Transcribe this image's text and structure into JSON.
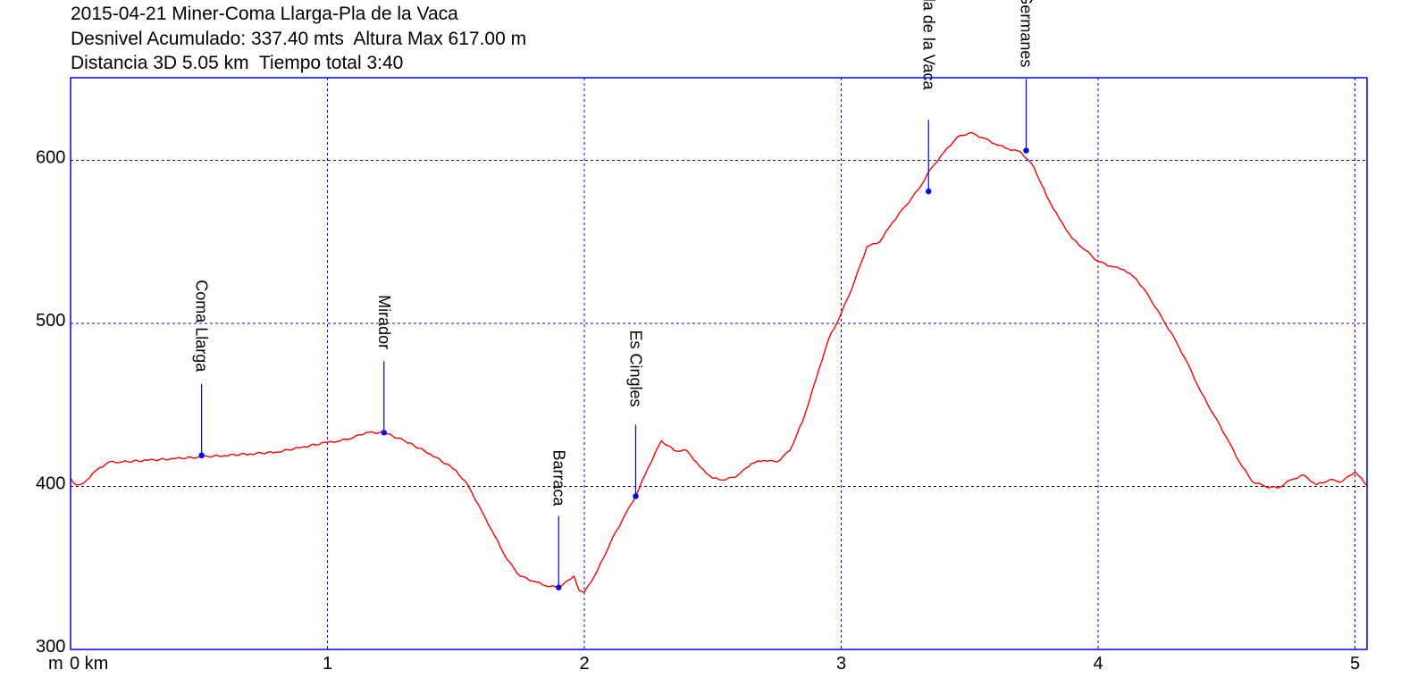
{
  "header": {
    "line1": "2015-04-21 Miner-Coma Llarga-Pla de la Vaca",
    "line2": "Desnivel Acumulado: 337.40 mts  Altura Max 617.00 m",
    "line3": "Distancia 3D 5.05 km  Tiempo total 3:40"
  },
  "chart_data": {
    "type": "line",
    "title": "2015-04-21 Miner-Coma Llarga-Pla de la Vaca",
    "xlabel": "km",
    "ylabel": "m",
    "xlim": [
      0,
      5.05
    ],
    "ylim": [
      300,
      650
    ],
    "x_ticks": [
      0,
      1,
      2,
      3,
      4,
      5
    ],
    "x_tick_labels": [
      "0 km",
      "1",
      "2",
      "3",
      "4",
      "5"
    ],
    "y_ticks": [
      300,
      400,
      500,
      600
    ],
    "y_tick_labels": [
      "300",
      "400",
      "500",
      "600"
    ],
    "grid": true,
    "colors": {
      "profile": "#ff0000",
      "grid": "#0000ff",
      "grid_y400": "#000000",
      "frame": "#0000ff",
      "waypoint": "#0000ff"
    },
    "series": [
      {
        "x": [
          0,
          0.02,
          0.05,
          0.1,
          0.15,
          0.2,
          0.3,
          0.4,
          0.5,
          0.6,
          0.7,
          0.8,
          0.9,
          1.0,
          1.05,
          1.1,
          1.15,
          1.22,
          1.3,
          1.4,
          1.5,
          1.55,
          1.6,
          1.65,
          1.7,
          1.75,
          1.8,
          1.85,
          1.9,
          1.93,
          1.96,
          1.98,
          2.0,
          2.05,
          2.1,
          2.15,
          2.2,
          2.25,
          2.3,
          2.35,
          2.4,
          2.45,
          2.5,
          2.55,
          2.6,
          2.65,
          2.7,
          2.75,
          2.8,
          2.85,
          2.9,
          2.95,
          3.0,
          3.05,
          3.1,
          3.15,
          3.2,
          3.25,
          3.3,
          3.35,
          3.4,
          3.45,
          3.5,
          3.55,
          3.6,
          3.65,
          3.7,
          3.75,
          3.8,
          3.85,
          3.9,
          3.95,
          4.0,
          4.05,
          4.1,
          4.15,
          4.2,
          4.25,
          4.3,
          4.35,
          4.4,
          4.45,
          4.5,
          4.55,
          4.6,
          4.65,
          4.7,
          4.75,
          4.8,
          4.85,
          4.9,
          4.95,
          5.0,
          5.05
        ],
        "y": [
          405,
          401,
          402,
          410,
          415,
          415,
          416,
          417,
          418,
          419,
          420,
          421,
          424,
          427,
          428,
          430,
          433,
          433,
          428,
          420,
          410,
          400,
          385,
          370,
          355,
          345,
          342,
          339,
          338,
          342,
          345,
          336,
          335,
          348,
          365,
          380,
          394,
          412,
          428,
          422,
          422,
          412,
          405,
          404,
          407,
          414,
          416,
          415,
          422,
          440,
          465,
          490,
          506,
          525,
          547,
          550,
          562,
          572,
          582,
          595,
          605,
          614,
          617,
          614,
          610,
          607,
          605,
          596,
          578,
          564,
          552,
          545,
          538,
          535,
          533,
          527,
          516,
          503,
          490,
          475,
          458,
          444,
          430,
          415,
          403,
          400,
          399,
          404,
          407,
          401,
          404,
          403,
          409,
          400
        ]
      }
    ],
    "waypoints": [
      {
        "name": "Coma Llarga",
        "x": 0.51,
        "y": 419
      },
      {
        "name": "Mirador",
        "x": 1.22,
        "y": 433
      },
      {
        "name": "Barraca",
        "x": 1.9,
        "y": 338
      },
      {
        "name": "Es Cingles",
        "x": 2.2,
        "y": 394
      },
      {
        "name": "Pla de la Vaca",
        "x": 3.34,
        "y": 581
      },
      {
        "name": "Ses Dues Germanes",
        "x": 3.72,
        "y": 606
      }
    ],
    "y_unit_label": "m"
  }
}
